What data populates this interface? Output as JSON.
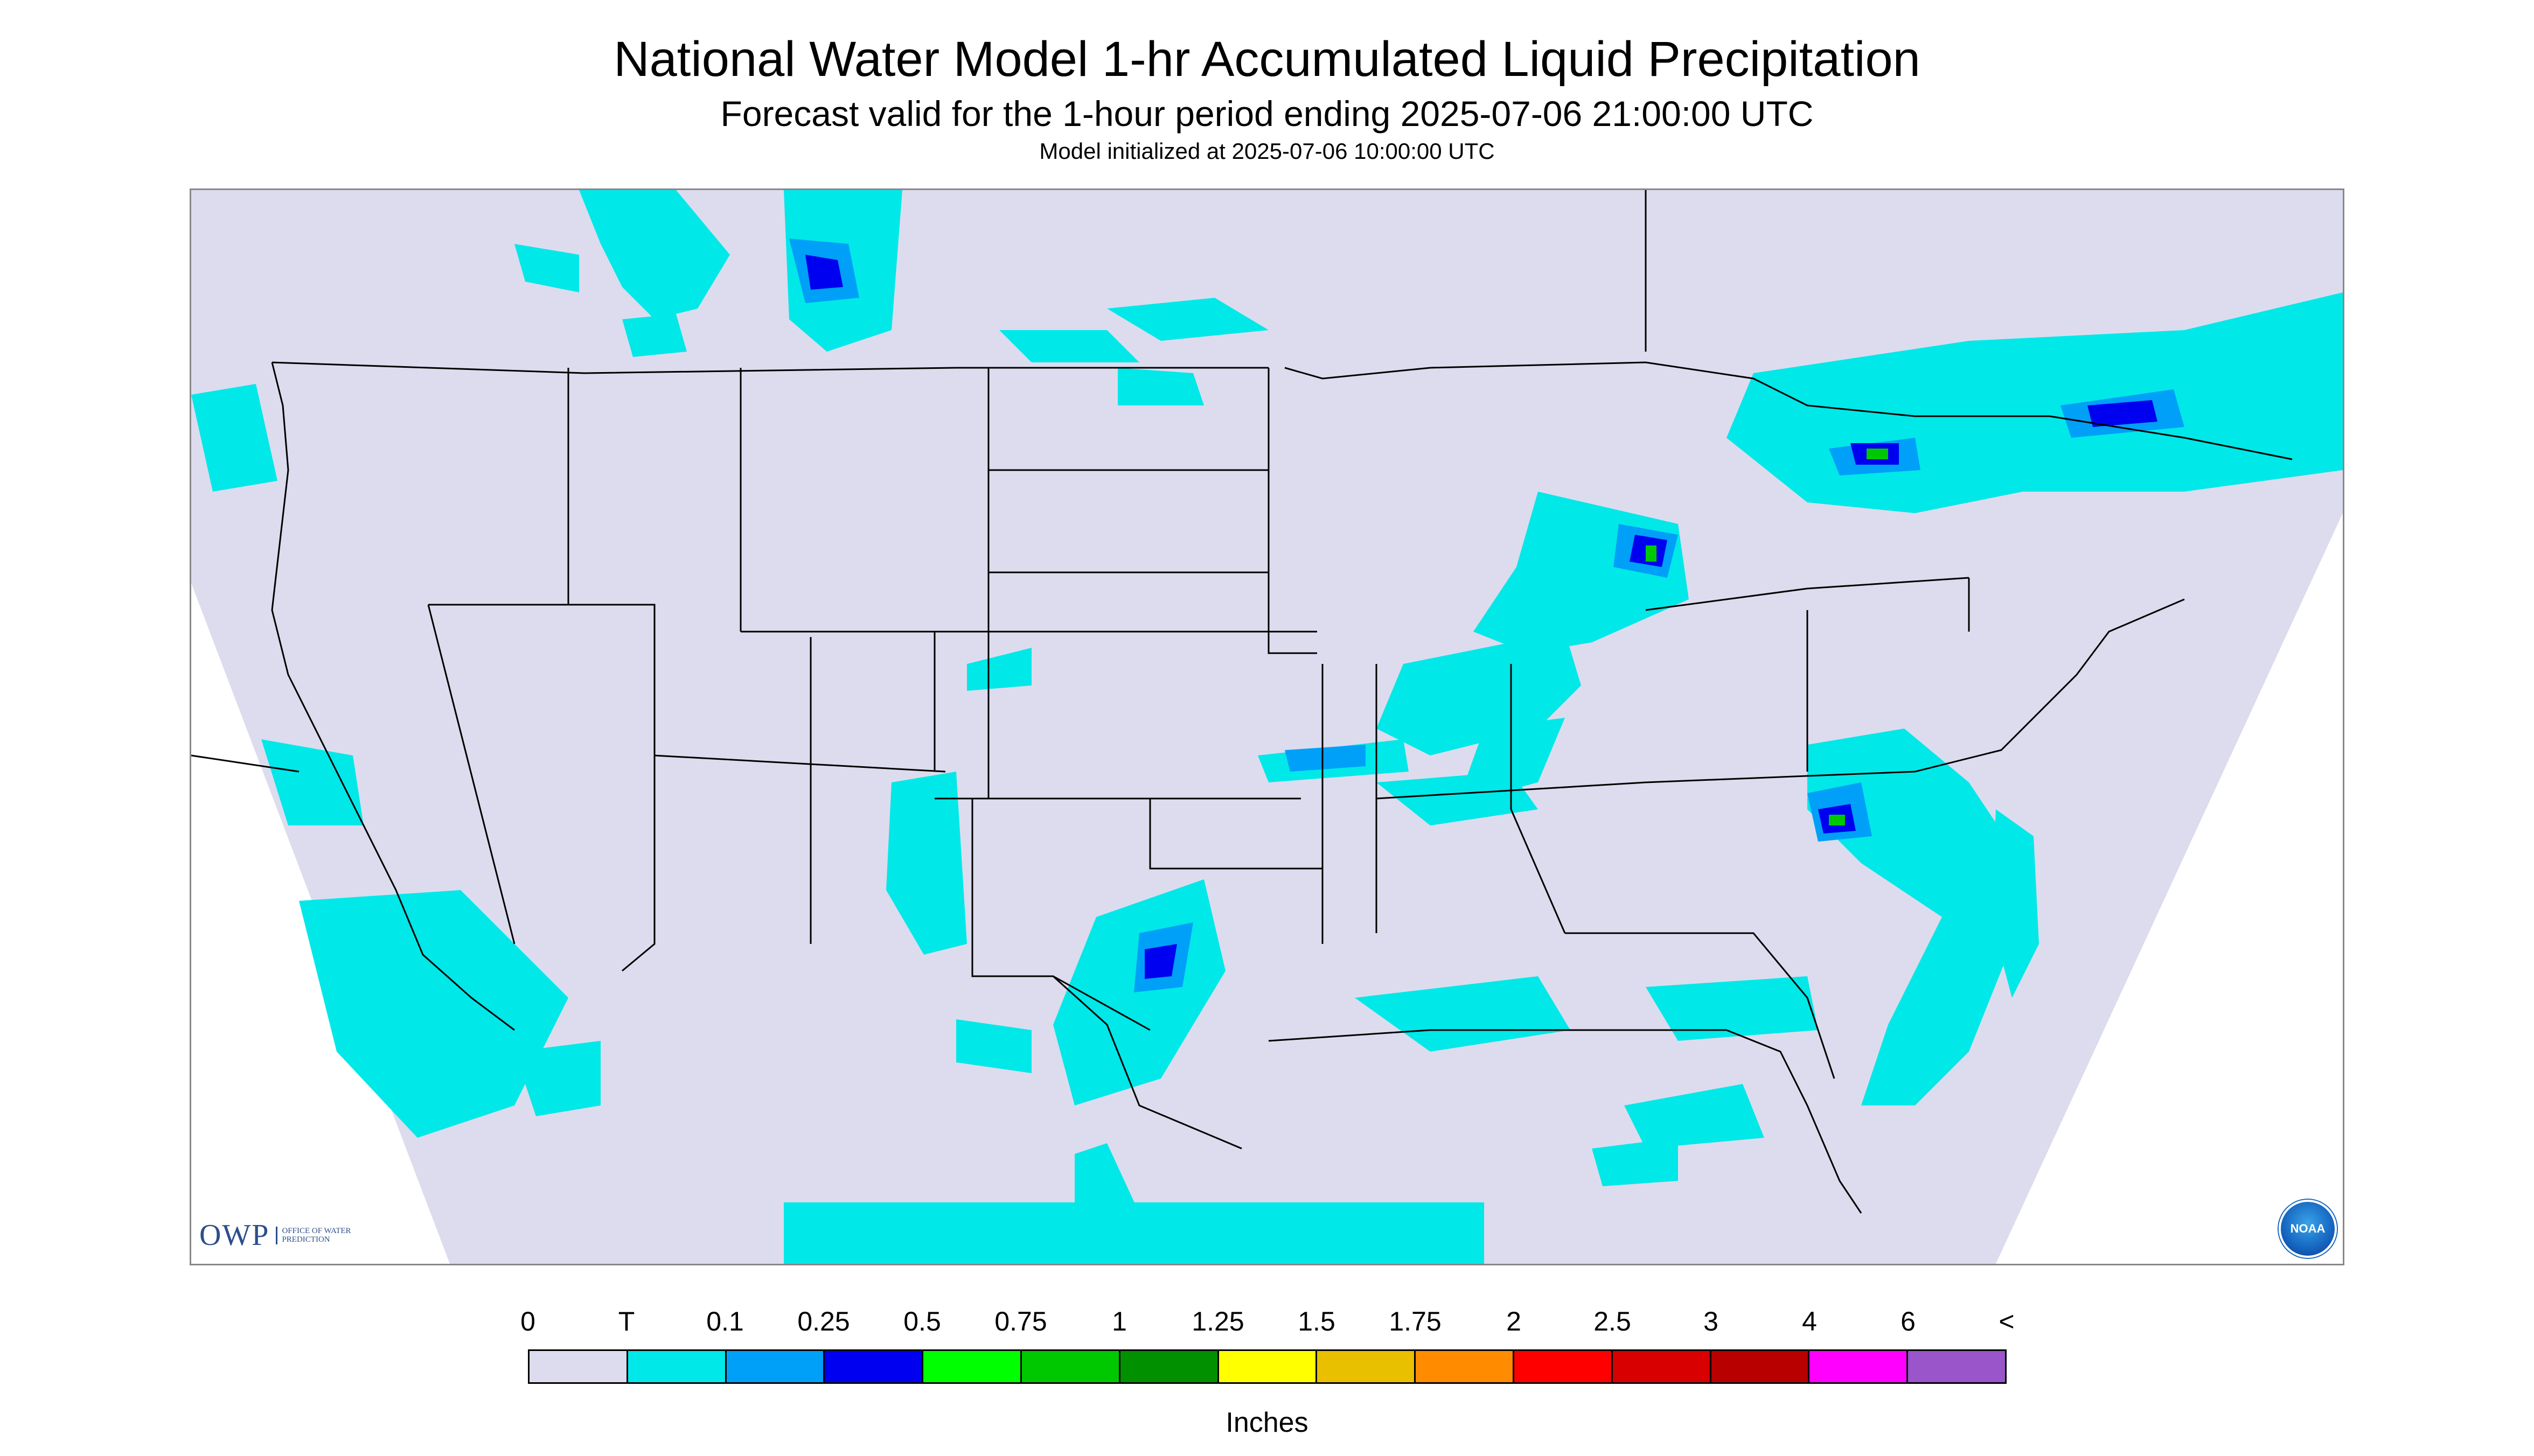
{
  "title": "National Water Model 1-hr Accumulated Liquid Precipitation",
  "subtitle": "Forecast valid for the 1-hour period ending 2025-07-06 21:00:00 UTC",
  "init_text": "Model initialized at 2025-07-06 10:00:00 UTC",
  "owp_logo": {
    "abbr": "OWP",
    "full": "OFFICE OF WATER PREDICTION"
  },
  "noaa_logo": "NOAA",
  "map": {
    "region": "Continental United States",
    "background_color": "#dcdcee",
    "boundary_color": "#000000"
  },
  "legend": {
    "labels": [
      "0",
      "T",
      "0.1",
      "0.25",
      "0.5",
      "0.75",
      "1",
      "1.25",
      "1.5",
      "1.75",
      "2",
      "2.5",
      "3",
      "4",
      "6",
      "<"
    ],
    "colors": [
      "#dcdcee",
      "#00e8e8",
      "#00a0f8",
      "#0000f0",
      "#00ff00",
      "#00c800",
      "#009000",
      "#ffff00",
      "#e8c000",
      "#ff8c00",
      "#ff0000",
      "#d80000",
      "#b80000",
      "#ff00ff",
      "#9955c9"
    ],
    "units": "Inches"
  }
}
